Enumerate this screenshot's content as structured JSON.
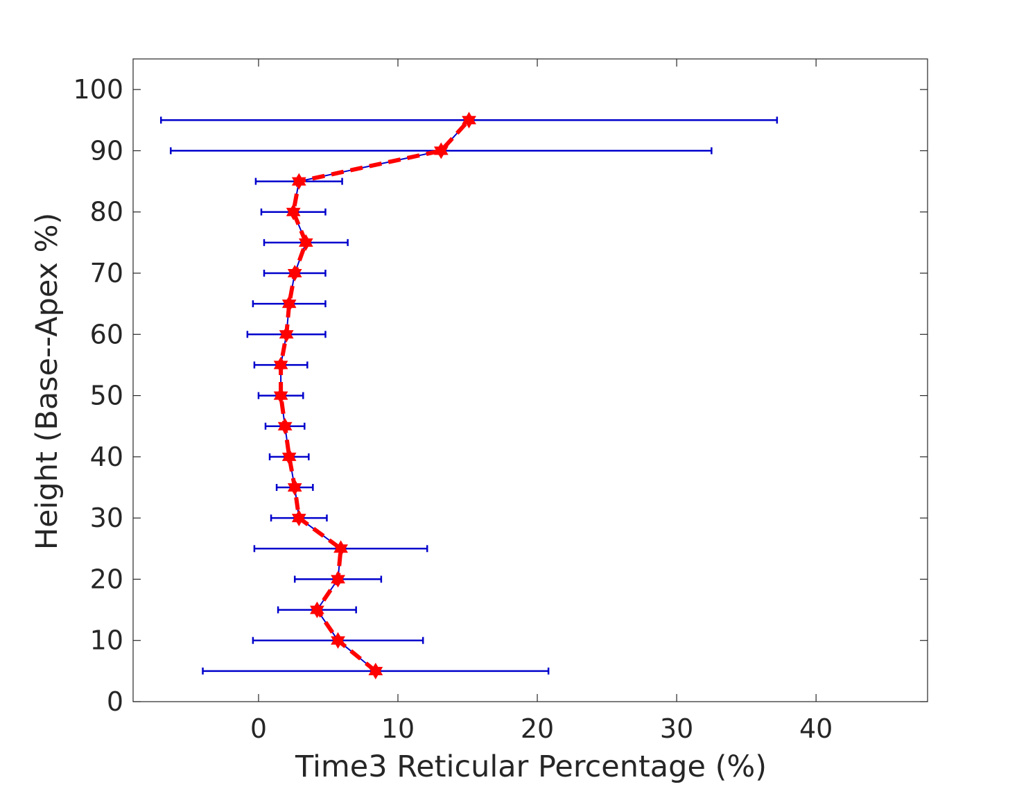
{
  "chart_data": {
    "type": "line",
    "orientation": "horizontal-errorbars",
    "xlabel": "Time3 Reticular Percentage (%)",
    "ylabel": "Height (Base--Apex %)",
    "xlim": [
      -9,
      48
    ],
    "ylim": [
      0,
      105
    ],
    "xticks": [
      0,
      10,
      20,
      30,
      40
    ],
    "yticks": [
      0,
      10,
      20,
      30,
      40,
      50,
      60,
      70,
      80,
      90,
      100
    ],
    "grid": false,
    "series": [
      {
        "line_color": "#0000cc",
        "marker_color": "#ff0000",
        "points": [
          {
            "y": 5,
            "x": 8.4,
            "err": 12.4
          },
          {
            "y": 10,
            "x": 5.7,
            "err": 6.1
          },
          {
            "y": 15,
            "x": 4.2,
            "err": 2.8
          },
          {
            "y": 20,
            "x": 5.7,
            "err": 3.1
          },
          {
            "y": 25,
            "x": 5.9,
            "err": 6.2
          },
          {
            "y": 30,
            "x": 2.9,
            "err": 2.0
          },
          {
            "y": 35,
            "x": 2.6,
            "err": 1.3
          },
          {
            "y": 40,
            "x": 2.2,
            "err": 1.4
          },
          {
            "y": 45,
            "x": 1.9,
            "err": 1.4
          },
          {
            "y": 50,
            "x": 1.6,
            "err": 1.6
          },
          {
            "y": 55,
            "x": 1.6,
            "err": 1.9
          },
          {
            "y": 60,
            "x": 2.0,
            "err": 2.8
          },
          {
            "y": 65,
            "x": 2.2,
            "err": 2.6
          },
          {
            "y": 70,
            "x": 2.6,
            "err": 2.2
          },
          {
            "y": 75,
            "x": 3.4,
            "err": 3.0
          },
          {
            "y": 80,
            "x": 2.5,
            "err": 2.3
          },
          {
            "y": 85,
            "x": 2.9,
            "err": 3.1
          },
          {
            "y": 90,
            "x": 13.1,
            "err": 19.4
          },
          {
            "y": 95,
            "x": 15.1,
            "err": 22.1
          }
        ]
      }
    ]
  }
}
